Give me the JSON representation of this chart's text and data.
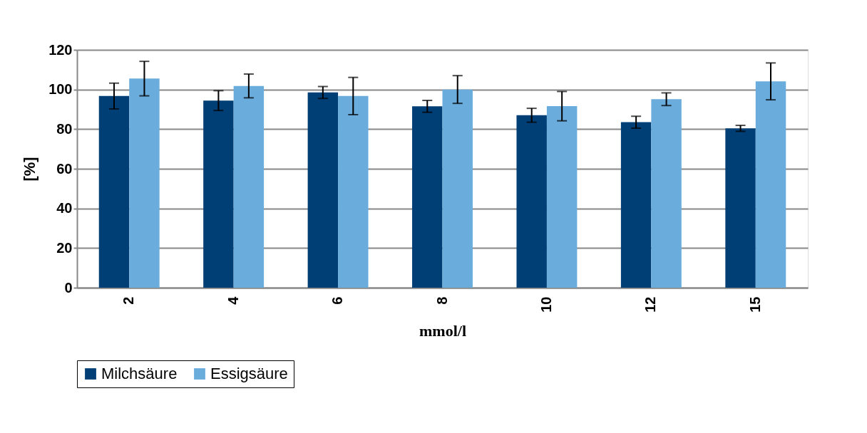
{
  "chart_data": {
    "type": "bar",
    "xlabel": "mmol/l",
    "ylabel": "[%]",
    "categories": [
      "2",
      "4",
      "6",
      "8",
      "10",
      "12",
      "15"
    ],
    "series": [
      {
        "name": "Milchsäure",
        "color": "#003f75",
        "values": [
          96.7,
          94.4,
          98.5,
          91.5,
          87,
          83.5,
          80.4
        ],
        "errors": [
          6.5,
          5,
          3,
          3,
          3.5,
          3,
          1.5
        ]
      },
      {
        "name": "Essigsäure",
        "color": "#6aacdc",
        "values": [
          105.5,
          101.8,
          96.7,
          100,
          91.6,
          95.1,
          104.1
        ],
        "errors": [
          8.7,
          6,
          9.4,
          7,
          7.4,
          3.2,
          9.3
        ]
      }
    ],
    "ylim": [
      0,
      120
    ],
    "yticks": [
      0,
      20,
      40,
      60,
      80,
      100,
      120
    ],
    "grid": "y",
    "legend": "bottom"
  }
}
